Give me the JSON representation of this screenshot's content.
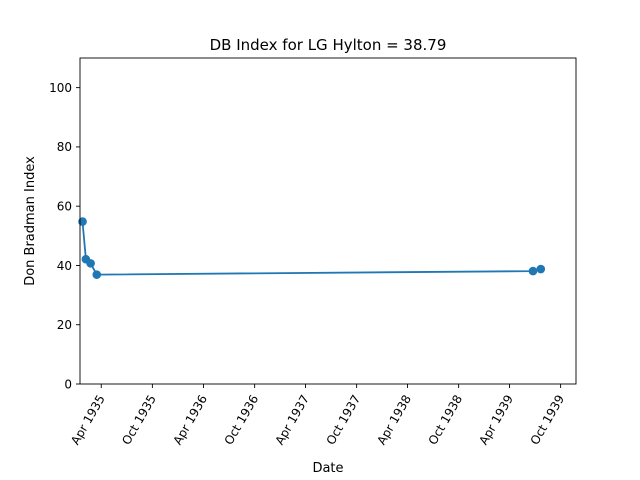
{
  "chart_data": {
    "type": "line",
    "title": "DB Index for LG Hylton = 38.79",
    "xlabel": "Date",
    "ylabel": "Don Bradman Index",
    "xlim": [
      "1935-01-15",
      "1939-11-25"
    ],
    "ylim": [
      0,
      110
    ],
    "x_ticks": [
      {
        "date": "1935-04-01",
        "label": "Apr 1935"
      },
      {
        "date": "1935-10-01",
        "label": "Oct 1935"
      },
      {
        "date": "1936-04-01",
        "label": "Apr 1936"
      },
      {
        "date": "1936-10-01",
        "label": "Oct 1936"
      },
      {
        "date": "1937-04-01",
        "label": "Apr 1937"
      },
      {
        "date": "1937-10-01",
        "label": "Oct 1937"
      },
      {
        "date": "1938-04-01",
        "label": "Apr 1938"
      },
      {
        "date": "1938-10-01",
        "label": "Oct 1938"
      },
      {
        "date": "1939-04-01",
        "label": "Apr 1939"
      },
      {
        "date": "1939-10-01",
        "label": "Oct 1939"
      }
    ],
    "y_ticks": [
      0,
      20,
      40,
      60,
      80,
      100
    ],
    "grid": false,
    "series": [
      {
        "color": "#1f77b4",
        "points": [
          {
            "x": "1935-01-24",
            "y": 54.8
          },
          {
            "x": "1935-02-05",
            "y": 42.1
          },
          {
            "x": "1935-02-22",
            "y": 40.7
          },
          {
            "x": "1935-03-16",
            "y": 36.9
          },
          {
            "x": "1939-06-24",
            "y": 38.1
          },
          {
            "x": "1939-07-22",
            "y": 38.79
          }
        ]
      }
    ]
  }
}
